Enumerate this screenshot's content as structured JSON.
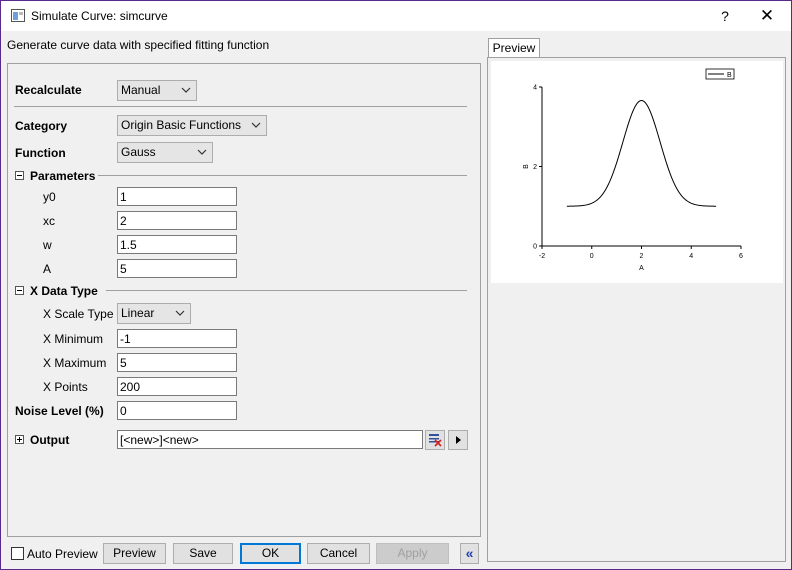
{
  "window": {
    "title": "Simulate Curve: simcurve",
    "help_glyph": "?",
    "close_glyph": "✕",
    "subtitle": "Generate curve data with specified fitting function"
  },
  "form": {
    "recalculate": {
      "label": "Recalculate",
      "value": "Manual"
    },
    "category": {
      "label": "Category",
      "value": "Origin Basic Functions"
    },
    "function": {
      "label": "Function",
      "value": "Gauss"
    },
    "parameters": {
      "label": "Parameters",
      "items": [
        {
          "label": "y0",
          "value": "1"
        },
        {
          "label": "xc",
          "value": "2"
        },
        {
          "label": "w",
          "value": "1.5"
        },
        {
          "label": "A",
          "value": "5"
        }
      ]
    },
    "xdata": {
      "label": "X Data Type",
      "scale_type": {
        "label": "X Scale Type",
        "value": "Linear"
      },
      "minimum": {
        "label": "X Minimum",
        "value": "-1"
      },
      "maximum": {
        "label": "X Maximum",
        "value": "5"
      },
      "points": {
        "label": "X Points",
        "value": "200"
      }
    },
    "noise": {
      "label": "Noise Level (%)",
      "value": "0"
    },
    "output": {
      "label": "Output",
      "value": "[<new>]<new>"
    }
  },
  "preview": {
    "tab_label": "Preview",
    "chart_data": {
      "type": "line",
      "function": "gauss",
      "params": {
        "y0": 1,
        "xc": 2,
        "w": 1.5,
        "A": 5
      },
      "x_range": [
        -1,
        5
      ],
      "points": 200,
      "xlim": [
        -2,
        6
      ],
      "ylim": [
        0,
        4
      ],
      "xticks": [
        "-2",
        "0",
        "2",
        "4",
        "6"
      ],
      "yticks": [
        "0",
        "2",
        "4"
      ],
      "xlabel": "A",
      "ylabel": "B",
      "legend": [
        "B"
      ],
      "legend_position": "top-right"
    }
  },
  "footer": {
    "auto_preview": "Auto Preview",
    "preview": "Preview",
    "save": "Save",
    "ok": "OK",
    "cancel": "Cancel",
    "apply": "Apply",
    "collapse_glyph": "«"
  }
}
